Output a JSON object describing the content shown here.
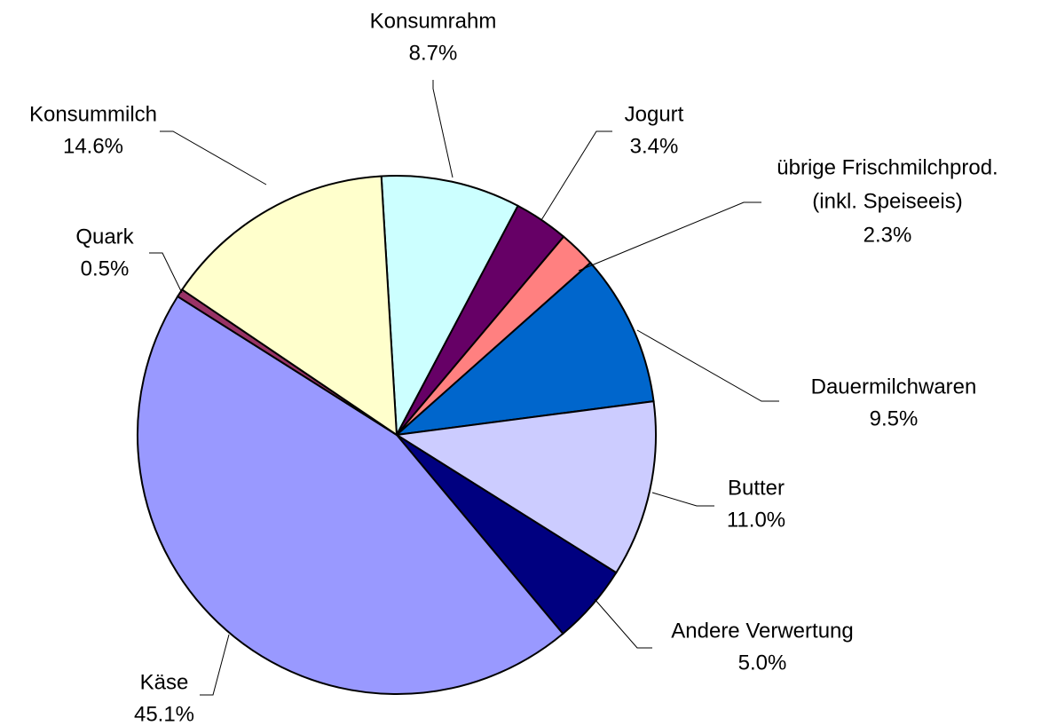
{
  "chart_data": {
    "type": "pie",
    "categories": [
      "Konsumrahm",
      "Jogurt",
      [
        "übrige Frischmilchprod.",
        "(inkl. Speiseeis)"
      ],
      "Dauermilchwaren",
      "Butter",
      "Andere Verwertung",
      "Käse",
      "Quark",
      "Konsummilch"
    ],
    "values": [
      8.7,
      3.4,
      2.3,
      9.5,
      11.0,
      5.0,
      45.1,
      0.5,
      14.6
    ],
    "value_labels": [
      "8.7%",
      "3.4%",
      "2.3%",
      "9.5%",
      "11.0%",
      "5.0%",
      "45.1%",
      "0.5%",
      "14.6%"
    ],
    "colors": [
      "#ccffff",
      "#660066",
      "#ff8080",
      "#0066cc",
      "#ccccff",
      "#000080",
      "#9999ff",
      "#993366",
      "#ffffcc"
    ]
  }
}
